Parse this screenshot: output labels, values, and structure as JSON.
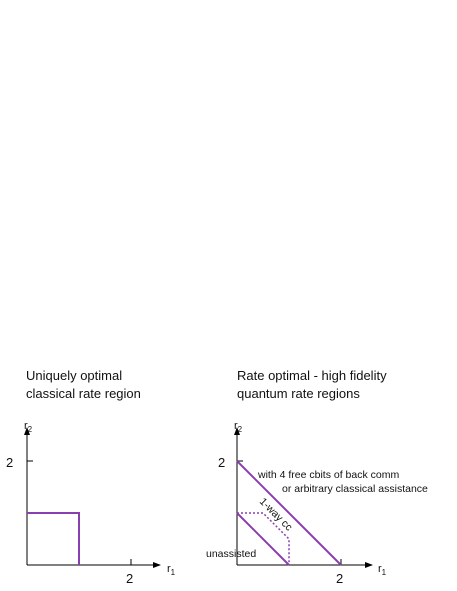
{
  "left_panel": {
    "title_line1": "Uniquely optimal",
    "title_line2": "classical rate region",
    "y_axis_label": "r",
    "y_axis_sub": "2",
    "x_axis_label": "r",
    "x_axis_sub": "1",
    "y_tick_label": "2",
    "x_tick_label": "2",
    "region": {
      "type": "rectangle",
      "r1_max": 1,
      "r2_max": 1
    }
  },
  "right_panel": {
    "title_line1": "Rate optimal - high fidelity",
    "title_line2": "quantum rate regions",
    "y_axis_label": "r",
    "y_axis_sub": "2",
    "x_axis_label": "r",
    "x_axis_sub": "1",
    "y_tick_label": "2",
    "x_tick_label": "2",
    "annotation_line1": "with 4 free cbits of back comm",
    "annotation_line2": "or arbitrary classical assistance",
    "label_one_way": "1-way cc",
    "label_unassisted": "unassisted",
    "regions": [
      {
        "name": "with 4 free cbits of back comm or arbitrary classical assistance",
        "boundary": [
          [
            0,
            2
          ],
          [
            2,
            0
          ]
        ]
      },
      {
        "name": "1-way cc",
        "boundary": [
          [
            0,
            1
          ],
          [
            0.5,
            1
          ],
          [
            1,
            0.5
          ],
          [
            1,
            0
          ]
        ]
      },
      {
        "name": "unassisted",
        "boundary": [
          [
            0,
            1
          ],
          [
            1,
            0
          ]
        ]
      }
    ]
  },
  "colors": {
    "region": "#8a3fb0",
    "axis": "#000000"
  }
}
